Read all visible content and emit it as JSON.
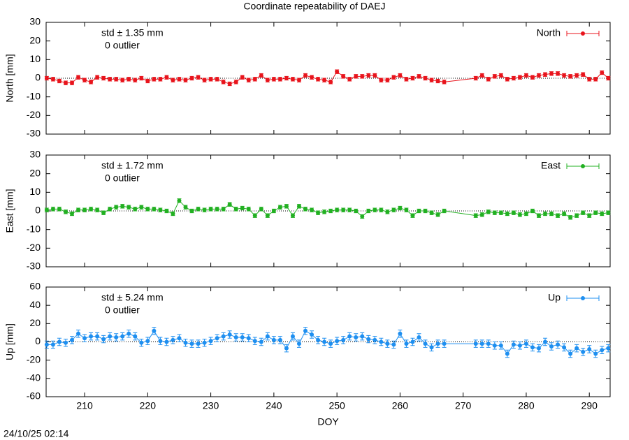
{
  "title": "Coordinate repeatability of DAEJ",
  "timestamp": "24/10/25 02:14",
  "chart_data": [
    {
      "type": "errorbar-line",
      "ylabel": "North [mm]",
      "ylim": [
        -30,
        30
      ],
      "yticks": [
        -30,
        -20,
        -10,
        0,
        10,
        20,
        30
      ],
      "xlim": [
        203.9,
        293.3
      ],
      "xticks": [
        210,
        220,
        230,
        240,
        250,
        260,
        270,
        280,
        290
      ],
      "x": [
        204,
        205,
        206,
        207,
        208,
        209,
        210,
        211,
        212,
        213,
        214,
        215,
        216,
        217,
        218,
        219,
        220,
        221,
        222,
        223,
        224,
        225,
        226,
        227,
        228,
        229,
        230,
        231,
        232,
        233,
        234,
        235,
        236,
        237,
        238,
        239,
        240,
        241,
        242,
        243,
        244,
        245,
        246,
        247,
        248,
        249,
        250,
        251,
        252,
        253,
        254,
        255,
        256,
        257,
        258,
        259,
        260,
        261,
        262,
        263,
        264,
        265,
        266,
        267,
        272,
        273,
        274,
        275,
        276,
        277,
        278,
        279,
        280,
        281,
        282,
        283,
        284,
        285,
        286,
        287,
        288,
        289,
        290,
        291,
        292,
        293
      ],
      "series": [
        {
          "name": "North",
          "color": "#e8141c",
          "error": 1,
          "values": [
            0,
            -0.5,
            -1.5,
            -2.5,
            -2.5,
            0.5,
            -1,
            -2,
            0.5,
            0,
            -0.5,
            -0.5,
            -1,
            -0.5,
            -1,
            0,
            -1.5,
            -0.5,
            -0.5,
            0.5,
            -1,
            -0.5,
            -1,
            0,
            0.5,
            -1,
            -0.5,
            -0.5,
            -2,
            -3,
            -2,
            0.5,
            -1,
            -0.5,
            1.5,
            -1,
            -0.5,
            -0.5,
            0,
            -0.5,
            -1,
            1.5,
            0.5,
            -0.5,
            -1,
            -2,
            3.5,
            1,
            -0.5,
            1,
            1,
            1.5,
            1.5,
            -1,
            -1,
            0.5,
            1.5,
            -0.5,
            0,
            1,
            0,
            -1,
            -1.5,
            -2,
            0,
            1.5,
            -0.5,
            1,
            1.5,
            -0.5,
            0,
            0.5,
            1.5,
            0.5,
            1.5,
            2,
            2.5,
            2.5,
            1.5,
            1,
            1.5,
            2,
            -0.5,
            -0.5,
            3,
            0
          ]
        }
      ],
      "annotations": [
        {
          "text": "std ± 1.35 mm",
          "color": "#e8141c"
        },
        {
          "text": "0 outlier",
          "color": "#000000"
        }
      ]
    },
    {
      "type": "errorbar-line",
      "ylabel": "East [mm]",
      "ylim": [
        -30,
        30
      ],
      "yticks": [
        -30,
        -20,
        -10,
        0,
        10,
        20,
        30
      ],
      "xlim": [
        203.9,
        293.3
      ],
      "xticks": [
        210,
        220,
        230,
        240,
        250,
        260,
        270,
        280,
        290
      ],
      "x": [
        204,
        205,
        206,
        207,
        208,
        209,
        210,
        211,
        212,
        213,
        214,
        215,
        216,
        217,
        218,
        219,
        220,
        221,
        222,
        223,
        224,
        225,
        226,
        227,
        228,
        229,
        230,
        231,
        232,
        233,
        234,
        235,
        236,
        237,
        238,
        239,
        240,
        241,
        242,
        243,
        244,
        245,
        246,
        247,
        248,
        249,
        250,
        251,
        252,
        253,
        254,
        255,
        256,
        257,
        258,
        259,
        260,
        261,
        262,
        263,
        264,
        265,
        266,
        267,
        272,
        273,
        274,
        275,
        276,
        277,
        278,
        279,
        280,
        281,
        282,
        283,
        284,
        285,
        286,
        287,
        288,
        289,
        290,
        291,
        292,
        293
      ],
      "series": [
        {
          "name": "East",
          "color": "#22b022",
          "error": 1,
          "values": [
            0.5,
            1,
            1,
            -0.5,
            -1.5,
            0.5,
            0.5,
            1,
            0.5,
            -1,
            1,
            2,
            2.5,
            2,
            1,
            2,
            1,
            1,
            0.5,
            0,
            -1.5,
            5.5,
            2,
            0,
            1,
            0.5,
            1,
            1,
            1,
            3.5,
            1,
            1.5,
            1,
            -2.5,
            1,
            -2.5,
            0,
            2,
            2.5,
            -2.5,
            2.5,
            1,
            0.5,
            -1,
            -0.5,
            0,
            0.5,
            0.5,
            0.5,
            0,
            -3,
            0,
            0.5,
            0.5,
            -0.5,
            0.5,
            1.5,
            0.5,
            -2.5,
            0,
            0,
            -1,
            -2,
            0,
            -2.5,
            -2,
            -0.5,
            -1,
            -1,
            -1.5,
            -1,
            -2,
            -1.5,
            0,
            -2.5,
            -1.5,
            -1.5,
            -2.5,
            -1.5,
            -3.5,
            -2.5,
            -1,
            -2.5,
            -1,
            -1.5,
            -1
          ]
        }
      ],
      "annotations": [
        {
          "text": "std ± 1.72 mm",
          "color": "#22b022"
        },
        {
          "text": "0 outlier",
          "color": "#000000"
        }
      ]
    },
    {
      "type": "errorbar-line",
      "ylabel": "Up [mm]",
      "xlabel": "DOY",
      "ylim": [
        -60,
        60
      ],
      "yticks": [
        -60,
        -40,
        -20,
        0,
        20,
        40,
        60
      ],
      "xlim": [
        203.9,
        293.3
      ],
      "xticks": [
        210,
        220,
        230,
        240,
        250,
        260,
        270,
        280,
        290
      ],
      "x": [
        204,
        205,
        206,
        207,
        208,
        209,
        210,
        211,
        212,
        213,
        214,
        215,
        216,
        217,
        218,
        219,
        220,
        221,
        222,
        223,
        224,
        225,
        226,
        227,
        228,
        229,
        230,
        231,
        232,
        233,
        234,
        235,
        236,
        237,
        238,
        239,
        240,
        241,
        242,
        243,
        244,
        245,
        246,
        247,
        248,
        249,
        250,
        251,
        252,
        253,
        254,
        255,
        256,
        257,
        258,
        259,
        260,
        261,
        262,
        263,
        264,
        265,
        266,
        267,
        272,
        273,
        274,
        275,
        276,
        277,
        278,
        279,
        280,
        281,
        282,
        283,
        284,
        285,
        286,
        287,
        288,
        289,
        290,
        291,
        292,
        293
      ],
      "series": [
        {
          "name": "Up",
          "color": "#1e8ff0",
          "error": 4,
          "values": [
            -3,
            -3,
            0,
            -1,
            2,
            9,
            4,
            6,
            6,
            3,
            6,
            5,
            6,
            9,
            6,
            -1,
            1,
            12,
            1,
            0,
            2,
            4,
            -1,
            -2,
            -2,
            -1,
            1,
            4,
            6,
            8,
            5,
            5,
            4,
            1,
            0,
            6,
            2,
            2,
            -7,
            6,
            -2,
            12,
            8,
            2,
            0,
            -2,
            1,
            2,
            6,
            5,
            6,
            3,
            2,
            0,
            -2,
            -3,
            9,
            -2,
            0,
            5,
            -2,
            -6,
            -2,
            -2,
            -2,
            -2,
            -2,
            -4,
            -4,
            -13,
            -3,
            -4,
            -2,
            -6,
            -7,
            0,
            -5,
            -3,
            -6,
            -13,
            -7,
            -11,
            -8,
            -13,
            -9,
            -7
          ]
        }
      ],
      "annotations": [
        {
          "text": "std ± 5.24 mm",
          "color": "#1e8ff0"
        },
        {
          "text": "0 outlier",
          "color": "#000000"
        }
      ]
    }
  ]
}
